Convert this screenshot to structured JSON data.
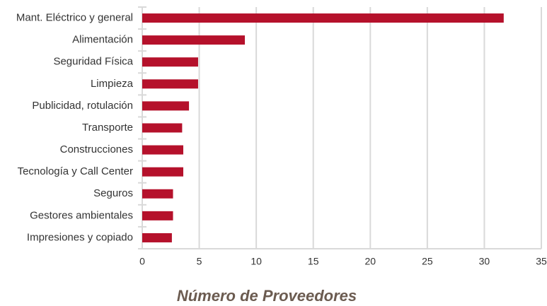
{
  "chart_data": {
    "type": "bar",
    "orientation": "horizontal",
    "x_label": "Número de Proveedores",
    "categories": [
      "Mant. Eléctrico y general",
      "Alimentación",
      "Seguridad Física",
      "Limpieza",
      "Publicidad, rotulación",
      "Transporte",
      "Construcciones",
      "Tecnología y Call Center",
      "Seguros",
      "Gestores ambientales",
      "Impresiones y copiado"
    ],
    "values": [
      31.7,
      9,
      4.9,
      4.9,
      4.1,
      3.5,
      3.6,
      3.6,
      2.7,
      2.7,
      2.6
    ],
    "color": "#b5112b",
    "xlim": [
      0,
      35
    ],
    "xticks": [
      0,
      5,
      10,
      15,
      20,
      25,
      30,
      35
    ],
    "grid": true
  }
}
